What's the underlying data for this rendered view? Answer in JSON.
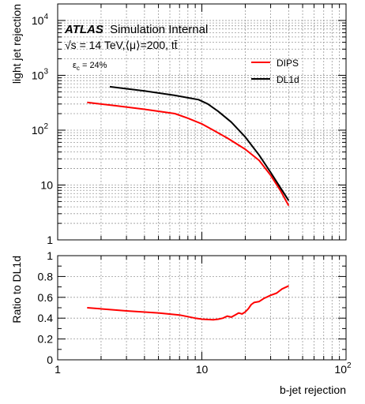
{
  "chart_data": [
    {
      "type": "line",
      "title": "ATLAS Simulation Internal",
      "title_bold": "ATLAS",
      "title_rest": "Simulation Internal",
      "subtitle": "√s = 14 TeV,⟨μ⟩=200, tt̄",
      "annotation": "ε_c = 24%",
      "annotation_main": "ε",
      "annotation_sub": "c",
      "annotation_rest": " = 24%",
      "xlabel": "",
      "ylabel": "light jet rejection",
      "xscale": "log",
      "yscale": "log",
      "xlim": [
        1,
        100
      ],
      "ylim": [
        1,
        20000
      ],
      "yticks": [
        {
          "value": 1,
          "label": "1"
        },
        {
          "value": 10,
          "label": "10"
        },
        {
          "value": 100,
          "label": "10",
          "exp": "2"
        },
        {
          "value": 1000,
          "label": "10",
          "exp": "3"
        },
        {
          "value": 10000,
          "label": "10",
          "exp": "4"
        }
      ],
      "grid": true,
      "legend_position": "top-right",
      "series": [
        {
          "name": "DIPS",
          "color": "#ff0000",
          "x": [
            1.6,
            2.5,
            4,
            6.5,
            8,
            10,
            12,
            15,
            20,
            25,
            30,
            35,
            40
          ],
          "y": [
            320,
            280,
            240,
            200,
            165,
            130,
            100,
            72,
            45,
            28,
            15,
            8,
            4.2
          ]
        },
        {
          "name": "DL1d",
          "color": "#000000",
          "x": [
            2.3,
            4,
            6.5,
            8,
            9.5,
            11,
            13,
            16,
            20,
            25,
            30,
            35,
            40
          ],
          "y": [
            620,
            520,
            430,
            390,
            360,
            300,
            220,
            140,
            75,
            35,
            17,
            9,
            5.2
          ]
        }
      ]
    },
    {
      "type": "line",
      "title": "",
      "xlabel": "b-jet rejection",
      "ylabel": "Ratio to DL1d",
      "xscale": "log",
      "xlim": [
        1,
        100
      ],
      "ylim": [
        0,
        1
      ],
      "xticks": [
        {
          "value": 1,
          "label": "1"
        },
        {
          "value": 10,
          "label": "10"
        },
        {
          "value": 100,
          "label": "10",
          "exp": "2"
        }
      ],
      "yticks": [
        {
          "value": 0,
          "label": "0"
        },
        {
          "value": 0.2,
          "label": "0.2"
        },
        {
          "value": 0.4,
          "label": "0.4"
        },
        {
          "value": 0.6,
          "label": "0.6"
        },
        {
          "value": 0.8,
          "label": "0.8"
        },
        {
          "value": 1,
          "label": "1"
        }
      ],
      "grid": true,
      "series": [
        {
          "name": "DIPS / DL1d",
          "color": "#ff0000",
          "x": [
            1.6,
            3,
            5,
            7,
            9,
            10,
            12,
            13,
            14,
            15,
            16,
            17,
            18,
            19,
            20,
            21,
            22,
            23,
            25,
            27,
            30,
            33,
            36,
            40
          ],
          "y": [
            0.5,
            0.47,
            0.45,
            0.43,
            0.4,
            0.39,
            0.385,
            0.39,
            0.4,
            0.42,
            0.41,
            0.43,
            0.45,
            0.44,
            0.46,
            0.49,
            0.53,
            0.55,
            0.56,
            0.59,
            0.62,
            0.64,
            0.68,
            0.71
          ]
        }
      ]
    }
  ]
}
